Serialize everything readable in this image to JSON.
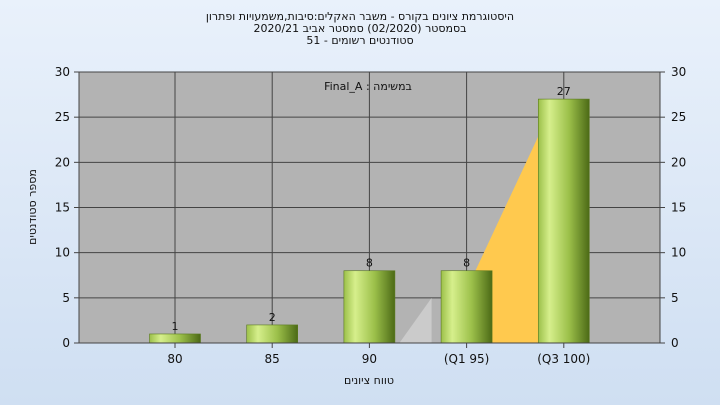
{
  "chart_data": {
    "type": "bar",
    "title_lines": [
      "היסטוגרמת ציונים בקורס - משבר האקלים:סיבות,משמעויות ופתרון",
      "בסמסטר  (02/2020)  סמסטר אביב 2020/21",
      "סטודנטים רשומים - 51"
    ],
    "annotation": "Final_A : במשימה",
    "categories": [
      "80",
      "85",
      "90",
      "(Q1 95)",
      "(Q3 100)"
    ],
    "values": [
      1,
      2,
      8,
      8,
      27
    ],
    "data_labels": [
      "1",
      "2",
      "8",
      "8",
      "27"
    ],
    "ylim": [
      0,
      30
    ],
    "y_ticks": [
      "0",
      "5",
      "10",
      "15",
      "20",
      "25",
      "30"
    ],
    "ylabel": "מספר סטודנטים",
    "xlabel": "טווח ציונים",
    "grid": true,
    "colors": {
      "plot_bg": "#b3b3b3",
      "bar_light": "#d6ef8c",
      "bar_mid": "#9cc04a",
      "bar_dark": "#4c6a16",
      "box_fill": "#ffc94e",
      "whisker_fill": "#cdcdcd"
    }
  }
}
